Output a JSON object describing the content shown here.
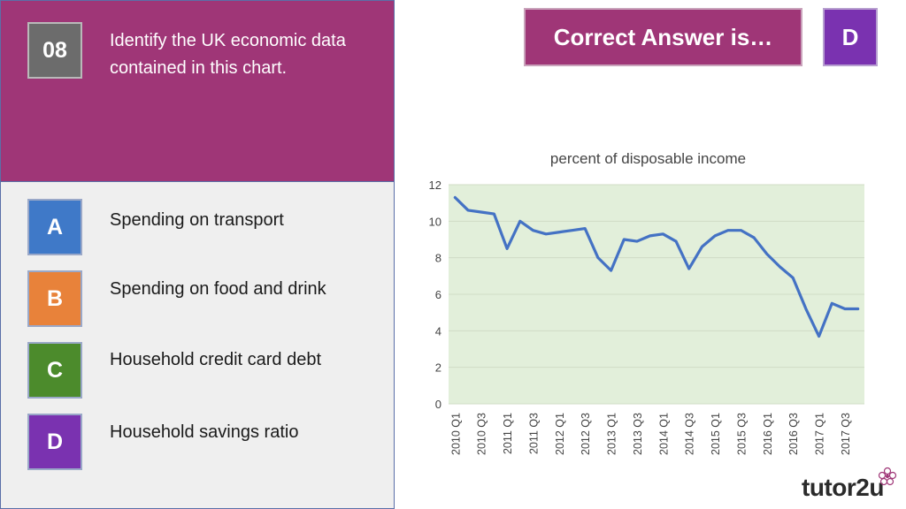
{
  "question": {
    "number": "08",
    "text": "Identify the UK economic data contained in this chart."
  },
  "options": [
    {
      "letter": "A",
      "text": "Spending on transport",
      "color": "#3f79c8"
    },
    {
      "letter": "B",
      "text": "Spending on food and drink",
      "color": "#e8823a"
    },
    {
      "letter": "C",
      "text": "Household credit card debt",
      "color": "#4c8b2c"
    },
    {
      "letter": "D",
      "text": "Household savings ratio",
      "color": "#7a32b0"
    }
  ],
  "reveal": {
    "label": "Correct Answer is…",
    "answer": "D"
  },
  "logo": {
    "text_main": "tutor",
    "text_accent": "2u"
  },
  "chart_data": {
    "type": "line",
    "title": "percent of disposable income",
    "xlabel": "",
    "ylabel": "",
    "ylim": [
      0,
      12
    ],
    "yticks": [
      0,
      2,
      4,
      6,
      8,
      10,
      12
    ],
    "grid": true,
    "background": "#e2efda",
    "line_color": "#4472c4",
    "categories": [
      "2010 Q1",
      "2010 Q2",
      "2010 Q3",
      "2010 Q4",
      "2011 Q1",
      "2011 Q2",
      "2011 Q3",
      "2011 Q4",
      "2012 Q1",
      "2012 Q2",
      "2012 Q3",
      "2012 Q4",
      "2013 Q1",
      "2013 Q2",
      "2013 Q3",
      "2013 Q4",
      "2014 Q1",
      "2014 Q2",
      "2014 Q3",
      "2014 Q4",
      "2015 Q1",
      "2015 Q2",
      "2015 Q3",
      "2015 Q4",
      "2016 Q1",
      "2016 Q2",
      "2016 Q3",
      "2016 Q4",
      "2017 Q1",
      "2017 Q2",
      "2017 Q3",
      "2017 Q4"
    ],
    "tick_labels": [
      "2010 Q1",
      "2010 Q3",
      "2011 Q1",
      "2011 Q3",
      "2012 Q1",
      "2012 Q3",
      "2013 Q1",
      "2013 Q3",
      "2014 Q1",
      "2014 Q3",
      "2015 Q1",
      "2015 Q3",
      "2016 Q1",
      "2016 Q3",
      "2017 Q1",
      "2017 Q3"
    ],
    "values": [
      11.3,
      10.6,
      10.5,
      10.4,
      8.5,
      10.0,
      9.5,
      9.3,
      9.4,
      9.5,
      9.6,
      8.0,
      7.3,
      9.0,
      8.9,
      9.2,
      9.3,
      8.9,
      7.4,
      8.6,
      9.2,
      9.5,
      9.5,
      9.1,
      8.2,
      7.5,
      6.9,
      5.2,
      3.7,
      5.5,
      5.2,
      5.2
    ]
  }
}
